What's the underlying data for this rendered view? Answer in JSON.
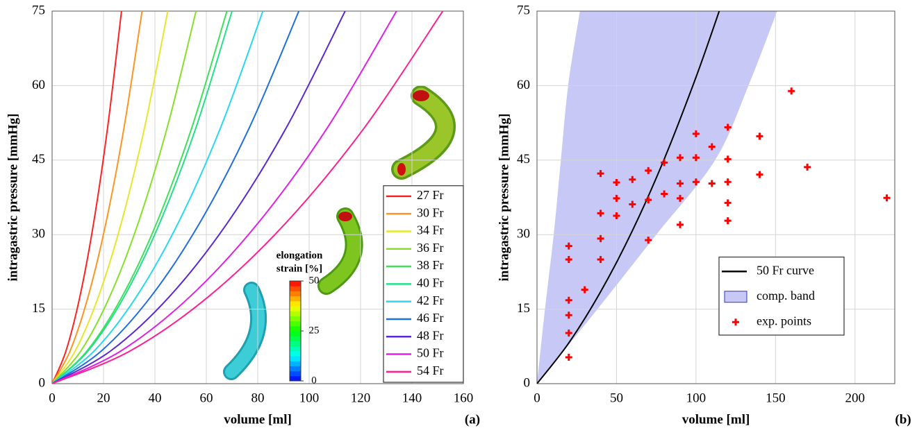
{
  "chart_data": [
    {
      "type": "line",
      "x_label": "volume [ml]",
      "y_label": "intragastric pressure [mmHg]",
      "panel_label": "(a)",
      "xlim": [
        0,
        160
      ],
      "xticks": [
        0,
        20,
        40,
        60,
        80,
        100,
        120,
        140,
        160
      ],
      "ylim": [
        0,
        75
      ],
      "yticks": [
        0,
        15,
        30,
        45,
        60,
        75
      ],
      "grid": true,
      "legend": "lower right",
      "series": [
        {
          "name": "27 Fr",
          "color": "#ff2020",
          "x": [
            0,
            5.4,
            10.8,
            16.2,
            21.6,
            27
          ],
          "values": [
            0,
            6.6,
            17.5,
            32.5,
            51.6,
            75
          ]
        },
        {
          "name": "30 Fr",
          "color": "#ff9420",
          "x": [
            0,
            7,
            14,
            21,
            28,
            35
          ],
          "values": [
            0,
            6.6,
            17.5,
            32.5,
            51.6,
            75
          ]
        },
        {
          "name": "34 Fr",
          "color": "#e6e62a",
          "x": [
            0,
            9,
            18,
            27,
            36,
            45
          ],
          "values": [
            0,
            6.6,
            17.5,
            32.5,
            51.6,
            75
          ]
        },
        {
          "name": "36 Fr",
          "color": "#86e02a",
          "x": [
            0,
            11.2,
            22.4,
            33.6,
            44.8,
            56
          ],
          "values": [
            0,
            6.6,
            17.5,
            32.5,
            51.6,
            75
          ]
        },
        {
          "name": "38 Fr",
          "color": "#3ee05a",
          "x": [
            0,
            13.6,
            27.2,
            40.8,
            54.4,
            68
          ],
          "values": [
            0,
            6.6,
            17.5,
            32.5,
            51.6,
            75
          ]
        },
        {
          "name": "40 Fr",
          "color": "#22e08a",
          "x": [
            0,
            14,
            28,
            42,
            56,
            70
          ],
          "values": [
            0,
            6.6,
            17.5,
            32.5,
            51.6,
            75
          ]
        },
        {
          "name": "42 Fr",
          "color": "#28d8f0",
          "x": [
            0,
            16.4,
            32.8,
            49.2,
            65.6,
            82
          ],
          "values": [
            0,
            6.6,
            17.5,
            32.5,
            51.6,
            75
          ]
        },
        {
          "name": "46 Fr",
          "color": "#1e6ee0",
          "x": [
            0,
            19.2,
            38.4,
            57.6,
            76.8,
            96
          ],
          "values": [
            0,
            6.6,
            17.5,
            32.5,
            51.6,
            75
          ]
        },
        {
          "name": "48 Fr",
          "color": "#5a28d4",
          "x": [
            0,
            22.8,
            45.6,
            68.4,
            91.2,
            114
          ],
          "values": [
            0,
            6.6,
            17.5,
            32.5,
            51.6,
            75
          ]
        },
        {
          "name": "50 Fr",
          "color": "#e020e6",
          "x": [
            0,
            26.8,
            53.6,
            80.4,
            107.2,
            134
          ],
          "values": [
            0,
            6.6,
            17.5,
            32.5,
            51.6,
            75
          ]
        },
        {
          "name": "54 Fr",
          "color": "#ff2090",
          "x": [
            0,
            30.4,
            60.8,
            91.2,
            121.6,
            152
          ],
          "values": [
            0,
            6.6,
            17.5,
            32.5,
            51.6,
            75
          ]
        }
      ],
      "colorbar": {
        "label_lines": [
          "elongation",
          "strain [%]"
        ],
        "lim": [
          0,
          50
        ],
        "ticks": [
          0,
          25,
          50
        ]
      }
    },
    {
      "type": "combo",
      "x_label": "volume [ml]",
      "y_label": "intragastric pressure [mmHg]",
      "panel_label": "(b)",
      "xlim": [
        0,
        225
      ],
      "xticks": [
        0,
        50,
        100,
        150,
        200
      ],
      "ylim": [
        0,
        75
      ],
      "yticks": [
        0,
        15,
        30,
        45,
        60,
        75
      ],
      "grid": true,
      "legend": "lower right",
      "series": [
        {
          "name": "50 Fr curve",
          "type": "line",
          "color": "#000000",
          "x": [
            0,
            20,
            40,
            60,
            80,
            100,
            114.6
          ],
          "values": [
            0,
            8.2,
            18.5,
            30.8,
            45.2,
            61.7,
            75
          ]
        },
        {
          "name": "comp. band",
          "type": "band",
          "color": "#c8c8f6",
          "y": [
            0,
            15,
            30,
            45,
            60,
            75
          ],
          "x_left": [
            0,
            5,
            10.5,
            15,
            19.6,
            27
          ],
          "x_right": [
            0,
            38,
            75,
            112,
            133,
            151
          ]
        },
        {
          "name": "exp. points",
          "type": "scatter",
          "color": "#ff0000",
          "x": [
            20,
            20,
            20,
            20,
            20,
            20,
            30,
            40,
            40,
            40,
            40,
            50,
            50,
            50,
            60,
            60,
            70,
            70,
            70,
            80,
            80,
            90,
            90,
            90,
            90,
            100,
            100,
            100,
            110,
            110,
            120,
            120,
            120,
            120,
            120,
            140,
            140,
            160,
            170,
            220
          ],
          "values": [
            27.7,
            25,
            16.8,
            13.8,
            10.2,
            5.3,
            18.9,
            42.3,
            34.3,
            29.2,
            25,
            40.5,
            37.3,
            33.8,
            41.1,
            36.1,
            42.9,
            37,
            28.9,
            44.5,
            38.2,
            45.5,
            40.3,
            37.3,
            32,
            50.3,
            45.5,
            40.6,
            47.7,
            40.3,
            51.6,
            45.2,
            40.6,
            36.4,
            32.8,
            49.8,
            42.1,
            58.9,
            43.6,
            37.4
          ]
        }
      ]
    }
  ]
}
